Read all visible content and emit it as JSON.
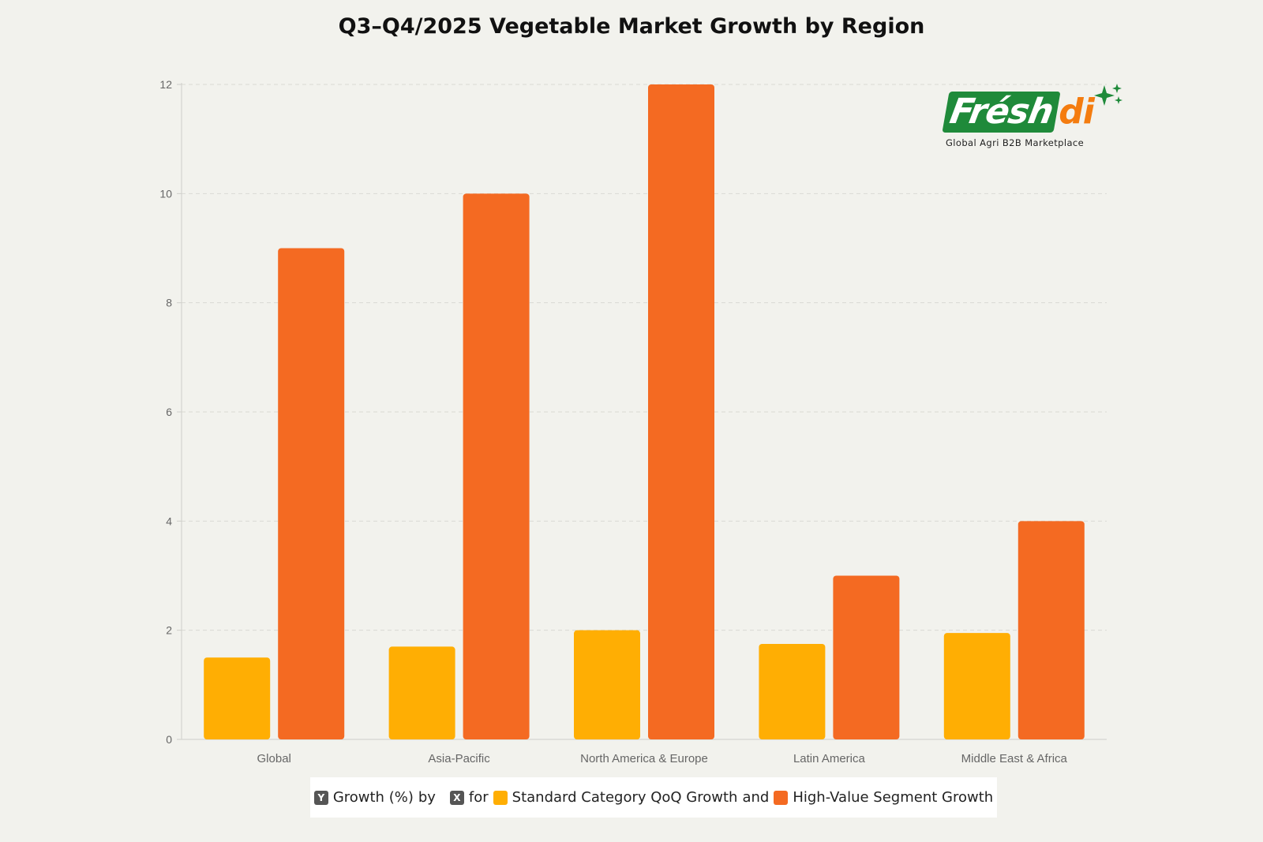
{
  "chart_data": {
    "type": "bar",
    "title": "Q3–Q4/2025 Vegetable Market Growth by Region",
    "categories": [
      "Global",
      "Asia-Pacific",
      "North America & Europe",
      "Latin America",
      "Middle East & Africa"
    ],
    "series": [
      {
        "name": "Standard Category QoQ Growth",
        "values": [
          1.5,
          1.7,
          2.0,
          1.75,
          1.95
        ],
        "color": "#ffae03"
      },
      {
        "name": "High-Value Segment Growth",
        "values": [
          9,
          10,
          12,
          3,
          4
        ],
        "color": "#f46a22"
      }
    ],
    "yticks": [
      0,
      2,
      4,
      6,
      8,
      10,
      12
    ],
    "ylim": [
      0,
      12
    ],
    "grid": true,
    "legend_position": "bottom"
  },
  "legend": {
    "y_badge": "Y",
    "y_text": "Growth (%)",
    "by": "by",
    "x_badge": "X",
    "for": "for",
    "series1": "Standard Category QoQ Growth",
    "and": "and",
    "series2": "High-Value Segment Growth"
  },
  "logo": {
    "brand_main": "Frésh",
    "brand_suffix": "di",
    "tagline": "Global Agri B2B Marketplace",
    "green": "#1f8a3a",
    "orange": "#f47c0f"
  }
}
